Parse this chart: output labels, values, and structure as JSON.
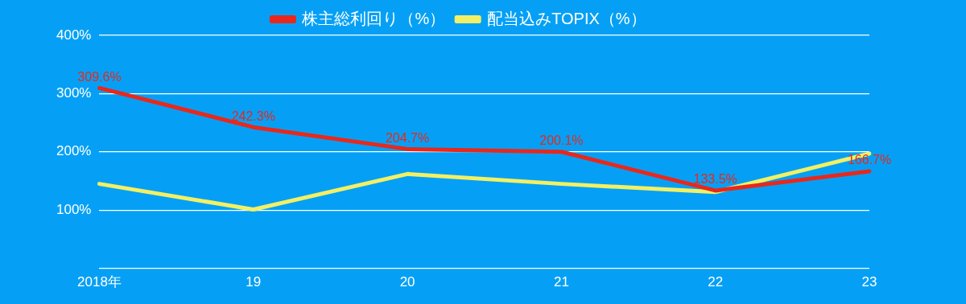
{
  "chart_data": {
    "type": "line",
    "categories": [
      "2018年",
      "19",
      "20",
      "21",
      "22",
      "23"
    ],
    "series": [
      {
        "name": "株主総利回り（%）",
        "color": "#e8281c",
        "values": [
          309.6,
          242.3,
          204.7,
          200.1,
          133.5,
          166.7
        ],
        "value_labels": [
          "309.6%",
          "242.3%",
          "204.7%",
          "200.1%",
          "133.5%",
          "166.7%"
        ]
      },
      {
        "name": "配当込みTOPIX（%）",
        "color": "#f2f064",
        "values": [
          145,
          101,
          162,
          145,
          131,
          197
        ]
      }
    ],
    "ylim": [
      0,
      400
    ],
    "yticks": [
      {
        "value": 0,
        "label": null
      },
      {
        "value": 100,
        "label": "100%"
      },
      {
        "value": 200,
        "label": "200%"
      },
      {
        "value": 300,
        "label": "300%"
      },
      {
        "value": 400,
        "label": "400%"
      }
    ],
    "grid": "y",
    "legend": "top",
    "marker": "none",
    "line_style": "solid"
  }
}
